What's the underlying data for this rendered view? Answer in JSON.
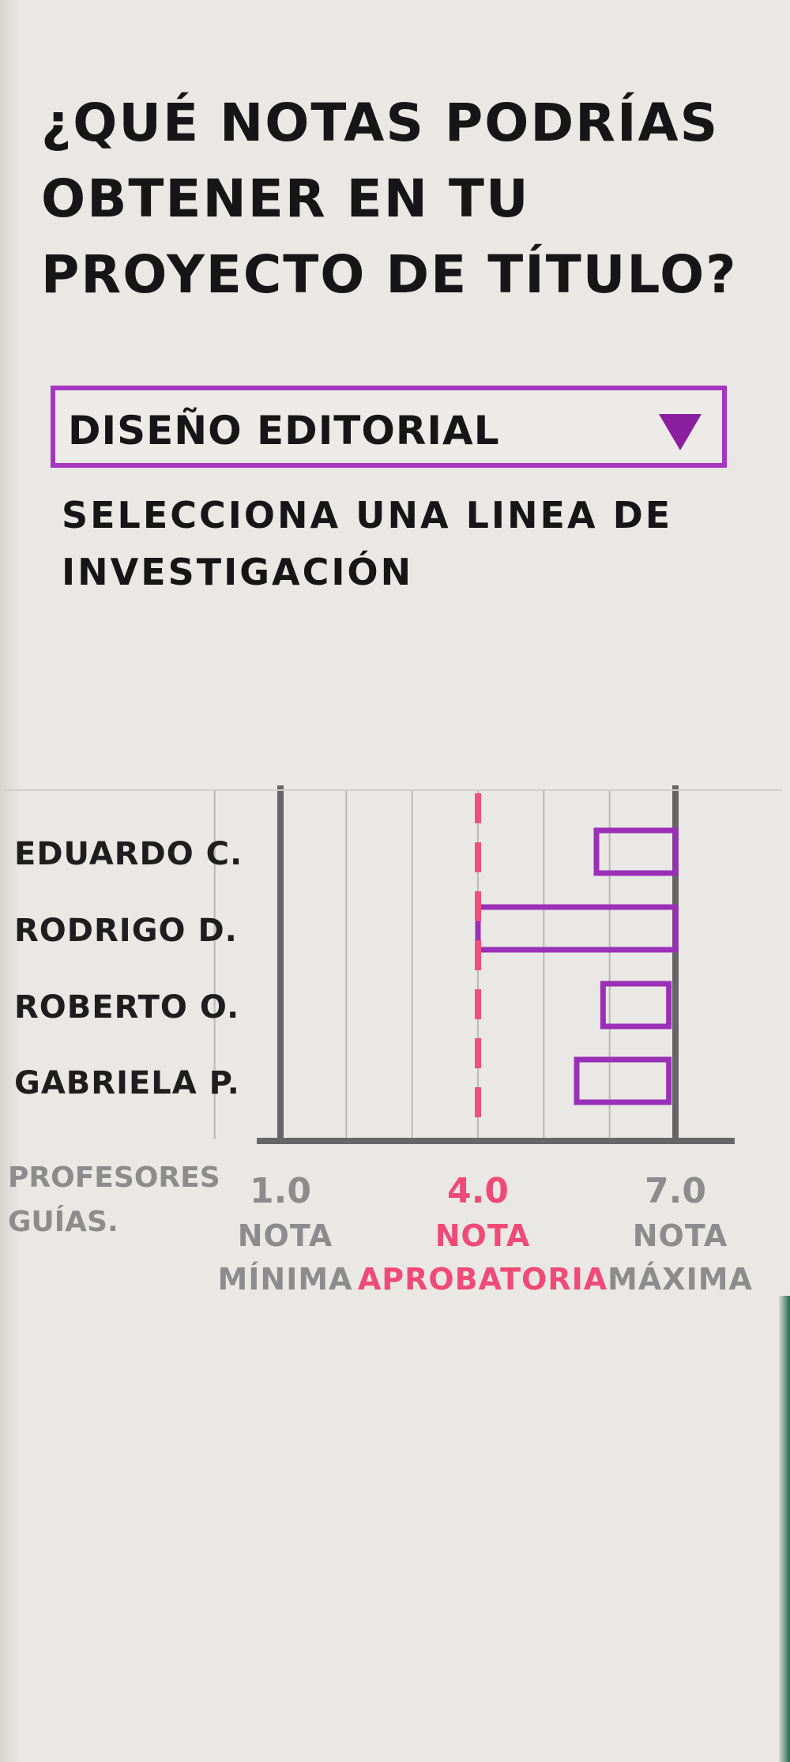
{
  "question": "¿Qué notas podrías obtener en tu proyecto de título?",
  "dropdown": {
    "selected": "DISEÑO EDITORIAL",
    "icon": "triangle-down-icon"
  },
  "helper_text": "SELECCIONA UNA LINEA DE INVESTIGACIÓN",
  "colors": {
    "bar_stroke": "#9b2fb8",
    "pass_line": "#f0507a",
    "pass_text": "#f04a78",
    "axis_text": "#8c8c8c",
    "labels": "#1e1e1e"
  },
  "chart_data": {
    "type": "bar",
    "orientation": "horizontal",
    "categories": [
      "EDUARDO C.",
      "RODRIGO D.",
      "ROBERTO O.",
      "GABRIELA P."
    ],
    "values": [
      [
        5.8,
        7.0
      ],
      [
        4.0,
        7.0
      ],
      [
        5.9,
        6.9
      ],
      [
        5.5,
        6.9
      ]
    ],
    "xlim": [
      1.0,
      7.0
    ],
    "ticks": [
      {
        "value": 1.0,
        "value_label": "1.0",
        "caption": "NOTA MÍNIMA"
      },
      {
        "value": 4.0,
        "value_label": "4.0",
        "caption": "NOTA APROBATORIA"
      },
      {
        "value": 7.0,
        "value_label": "7.0",
        "caption": "NOTA MÁXIMA"
      }
    ],
    "ylabel": "PROFESORES GUÍAS.",
    "reference_line": {
      "value": 4.0,
      "style": "dashed"
    },
    "grid": true
  }
}
